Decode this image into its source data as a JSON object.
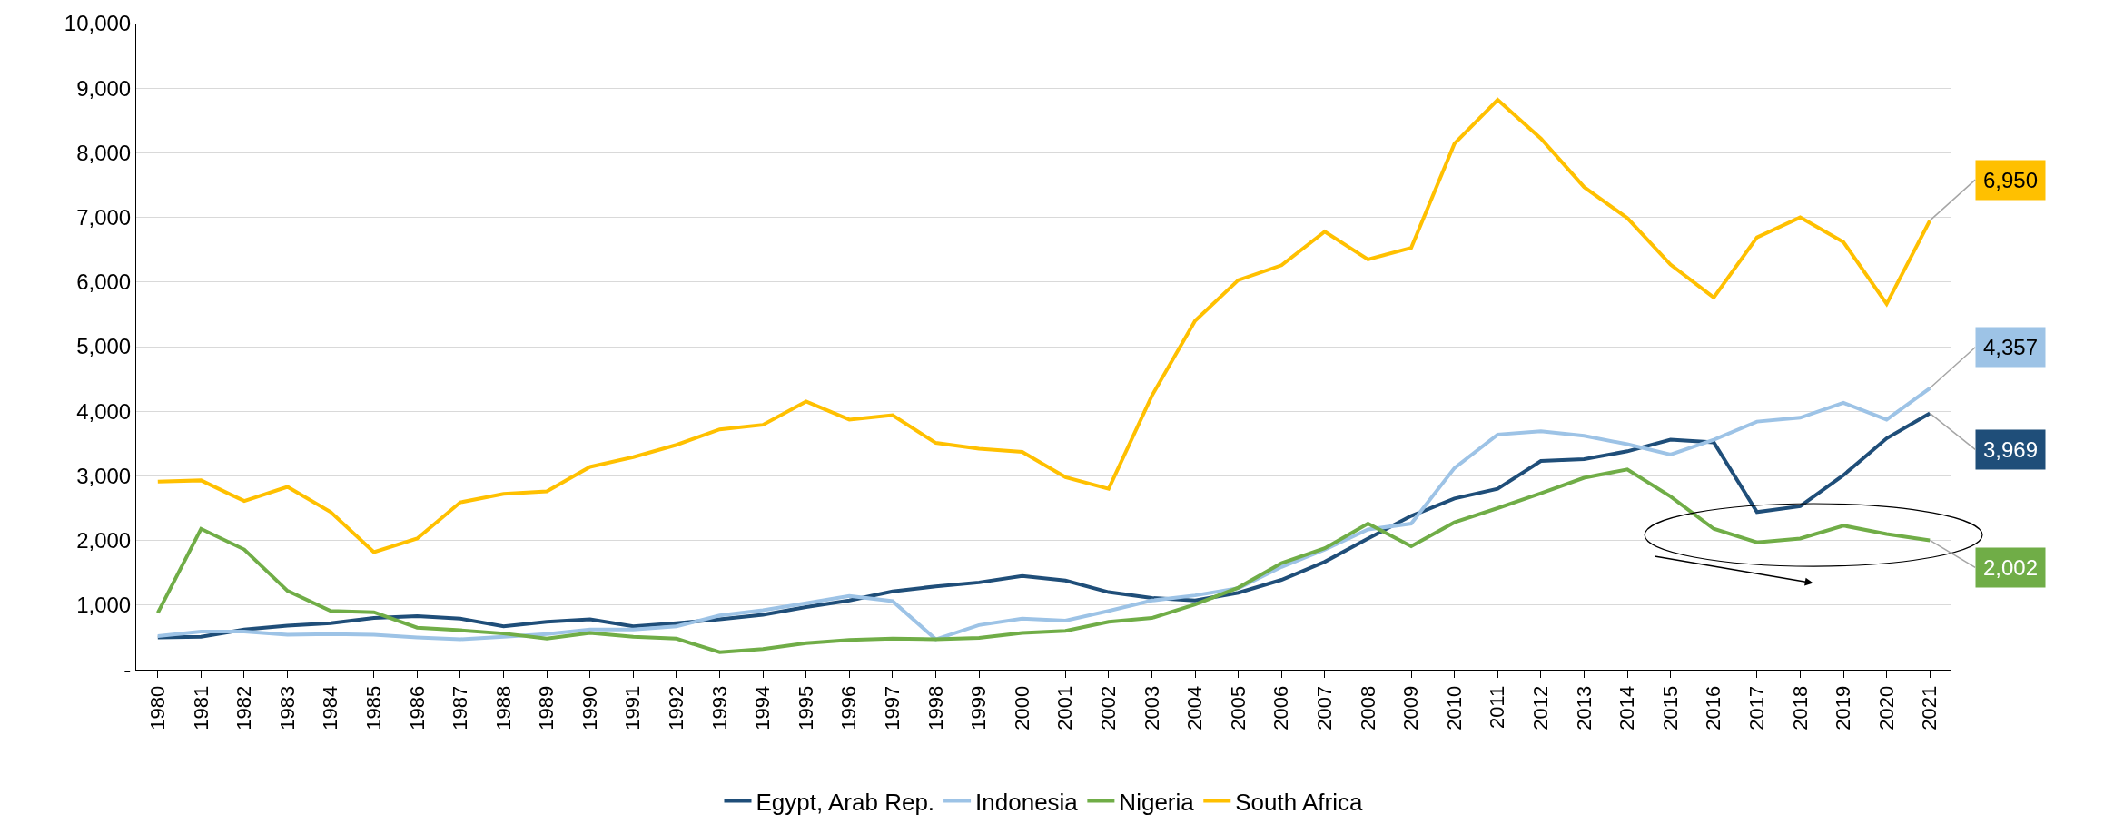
{
  "chart_data": {
    "type": "line",
    "x": [
      1980,
      1981,
      1982,
      1983,
      1984,
      1985,
      1986,
      1987,
      1988,
      1989,
      1990,
      1991,
      1992,
      1993,
      1994,
      1995,
      1996,
      1997,
      1998,
      1999,
      2000,
      2001,
      2002,
      2003,
      2004,
      2005,
      2006,
      2007,
      2008,
      2009,
      2010,
      2011,
      2012,
      2013,
      2014,
      2015,
      2016,
      2017,
      2018,
      2019,
      2020,
      2021
    ],
    "series": [
      {
        "name": "Egypt, Arab Rep.",
        "color": "#1f4e79",
        "values": [
          500,
          510,
          620,
          680,
          720,
          800,
          830,
          790,
          670,
          740,
          780,
          670,
          720,
          780,
          850,
          970,
          1070,
          1210,
          1290,
          1350,
          1450,
          1380,
          1200,
          1110,
          1070,
          1190,
          1390,
          1670,
          2030,
          2380,
          2650,
          2800,
          3230,
          3260,
          3380,
          3560,
          3520,
          2440,
          2530,
          3010,
          3580,
          3969
        ],
        "value_labels": [
          null,
          null,
          null,
          null,
          null,
          null,
          null,
          null,
          null,
          null,
          null,
          null,
          null,
          null,
          null,
          null,
          null,
          null,
          null,
          null,
          null,
          null,
          null,
          null,
          null,
          null,
          null,
          null,
          null,
          null,
          null,
          null,
          null,
          null,
          null,
          null,
          null,
          null,
          null,
          null,
          null,
          "3,969"
        ]
      },
      {
        "name": "Indonesia",
        "color": "#9dc3e6",
        "values": [
          520,
          590,
          590,
          540,
          550,
          540,
          500,
          470,
          510,
          550,
          620,
          620,
          670,
          840,
          920,
          1030,
          1140,
          1060,
          470,
          690,
          790,
          760,
          910,
          1070,
          1150,
          1260,
          1590,
          1860,
          2170,
          2260,
          3120,
          3640,
          3690,
          3620,
          3490,
          3330,
          3560,
          3840,
          3900,
          4130,
          3870,
          4357
        ],
        "value_labels": [
          null,
          null,
          null,
          null,
          null,
          null,
          null,
          null,
          null,
          null,
          null,
          null,
          null,
          null,
          null,
          null,
          null,
          null,
          null,
          null,
          null,
          null,
          null,
          null,
          null,
          null,
          null,
          null,
          null,
          null,
          null,
          null,
          null,
          null,
          null,
          null,
          null,
          null,
          null,
          null,
          null,
          "4,357"
        ]
      },
      {
        "name": "Nigeria",
        "color": "#70ad47",
        "values": [
          880,
          2180,
          1860,
          1220,
          910,
          890,
          650,
          610,
          560,
          480,
          570,
          510,
          480,
          270,
          320,
          410,
          460,
          480,
          470,
          490,
          570,
          600,
          740,
          800,
          1010,
          1270,
          1650,
          1880,
          2260,
          1910,
          2280,
          2500,
          2730,
          2970,
          3100,
          2680,
          2180,
          1970,
          2030,
          2230,
          2100,
          2002
        ],
        "value_labels": [
          null,
          null,
          null,
          null,
          null,
          null,
          null,
          null,
          null,
          null,
          null,
          null,
          null,
          null,
          null,
          null,
          null,
          null,
          null,
          null,
          null,
          null,
          null,
          null,
          null,
          null,
          null,
          null,
          null,
          null,
          null,
          null,
          null,
          null,
          null,
          null,
          null,
          null,
          null,
          null,
          null,
          "2,002"
        ]
      },
      {
        "name": "South Africa",
        "color": "#ffc000",
        "values": [
          2910,
          2930,
          2610,
          2830,
          2440,
          1820,
          2030,
          2590,
          2720,
          2760,
          3140,
          3290,
          3480,
          3720,
          3790,
          4150,
          3870,
          3940,
          3510,
          3420,
          3370,
          2980,
          2800,
          4240,
          5400,
          6030,
          6260,
          6780,
          6350,
          6530,
          8140,
          8820,
          8220,
          7470,
          6990,
          6270,
          5760,
          6690,
          7000,
          6620,
          5660,
          6950
        ],
        "value_labels": [
          null,
          null,
          null,
          null,
          null,
          null,
          null,
          null,
          null,
          null,
          null,
          null,
          null,
          null,
          null,
          null,
          null,
          null,
          null,
          null,
          null,
          null,
          null,
          null,
          null,
          null,
          null,
          null,
          null,
          null,
          null,
          null,
          null,
          null,
          null,
          null,
          null,
          null,
          null,
          null,
          null,
          "6,950"
        ]
      }
    ],
    "xlim": [
      1979.5,
      2021.5
    ],
    "xticks": [
      1980,
      1981,
      1982,
      1983,
      1984,
      1985,
      1986,
      1987,
      1988,
      1989,
      1990,
      1991,
      1992,
      1993,
      1994,
      1995,
      1996,
      1997,
      1998,
      1999,
      2000,
      2001,
      2002,
      2003,
      2004,
      2005,
      2006,
      2007,
      2008,
      2009,
      2010,
      2011,
      2012,
      2013,
      2014,
      2015,
      2016,
      2017,
      2018,
      2019,
      2020,
      2021
    ],
    "ylim": [
      0,
      10000
    ],
    "yticks": [
      {
        "value": 0,
        "label": "-"
      },
      {
        "value": 1000,
        "label": "1,000"
      },
      {
        "value": 2000,
        "label": "2,000"
      },
      {
        "value": 3000,
        "label": "3,000"
      },
      {
        "value": 4000,
        "label": "4,000"
      },
      {
        "value": 5000,
        "label": "5,000"
      },
      {
        "value": 6000,
        "label": "6,000"
      },
      {
        "value": 7000,
        "label": "7,000"
      },
      {
        "value": 8000,
        "label": "8,000"
      },
      {
        "value": 9000,
        "label": "9,000"
      },
      {
        "value": 10000,
        "label": "10,000"
      }
    ],
    "grid": "y",
    "legend": "bottom",
    "marker": "none",
    "line_style": "solid"
  }
}
